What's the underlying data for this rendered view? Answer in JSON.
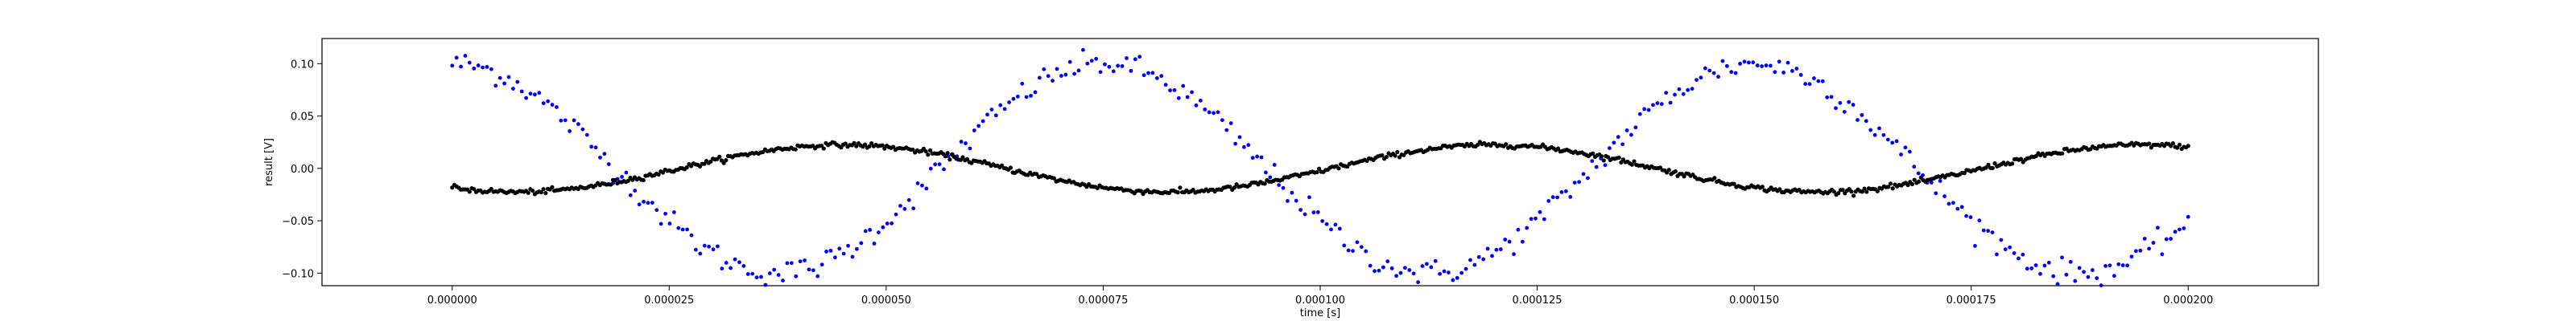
{
  "chart_data": {
    "type": "scatter",
    "xlabel": "time [s]",
    "ylabel": "result [V]",
    "xlim": [
      -1.5e-05,
      0.000215
    ],
    "ylim": [
      -0.112,
      0.124
    ],
    "x_ticks": [
      0.0,
      2.5e-05,
      5e-05,
      7.5e-05,
      0.0001,
      0.000125,
      0.00015,
      0.000175,
      0.0002
    ],
    "x_tick_labels": [
      "0.000000",
      "0.000025",
      "0.000050",
      "0.000075",
      "0.000100",
      "0.000125",
      "0.000150",
      "0.000175",
      "0.000200"
    ],
    "y_ticks": [
      -0.1,
      -0.05,
      0.0,
      0.05,
      0.1
    ],
    "y_tick_labels": [
      "−0.10",
      "−0.05",
      "0.00",
      "0.05",
      "0.10"
    ],
    "grid": false,
    "legend": "none",
    "series": [
      {
        "color": "#0000ff",
        "marker": "dot",
        "x_range": [
          0.0,
          0.0002
        ],
        "n_points": 400,
        "model": "amplitude*cos(2*pi*frequency*t)",
        "amplitude": 0.1,
        "frequency_hz": 13333,
        "noise_v": 0.006
      },
      {
        "color": "#000000",
        "marker": "dot",
        "x_range": [
          0.0,
          0.0002
        ],
        "n_points": 800,
        "model": "amplitude*cos(2*pi*frequency*(t - t_peak))",
        "amplitude": 0.0225,
        "frequency_hz": 13333,
        "t_peak_s": 4.5e-05,
        "noise_v": 0.0012
      }
    ]
  }
}
